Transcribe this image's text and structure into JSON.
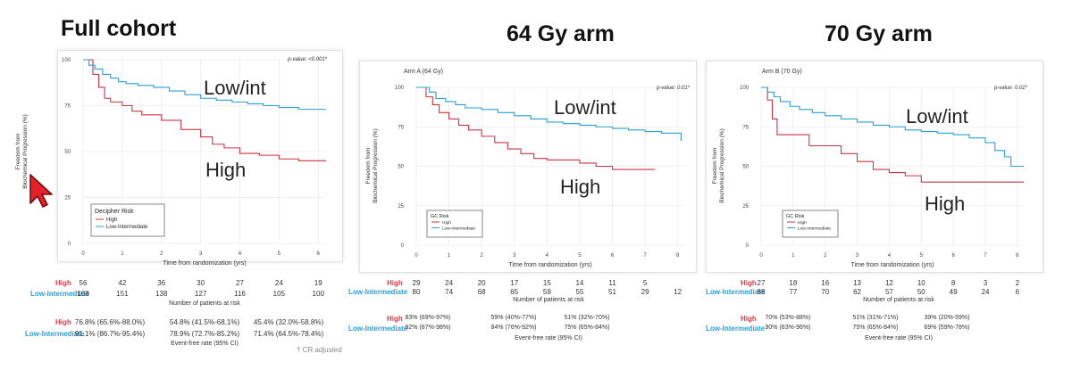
{
  "titles": {
    "full": "Full cohort",
    "arm64": "64 Gy arm",
    "arm70": "70 Gy arm"
  },
  "colors": {
    "high": "#cc3344",
    "low": "#2a9fd6",
    "high_label": "#d63a4a",
    "low_label": "#2a9fd6"
  },
  "cursor_icon": "mouse-pointer-icon",
  "footnote": "† CR adjusted",
  "chart_data": [
    {
      "type": "line",
      "subtitle": "",
      "pvalue": "p-value: <0.001*",
      "xlabel": "Time from randomization (yrs)",
      "ylabel": "Freedom from Biochemical Progression (%)",
      "xlim": [
        0,
        6.2
      ],
      "ylim": [
        0,
        100
      ],
      "xticks": [
        0,
        1,
        2,
        3,
        4,
        5,
        6
      ],
      "yticks": [
        0,
        25,
        50,
        75,
        100
      ],
      "legend": {
        "title": "Decipher Risk",
        "entries": [
          "High",
          "Low-Intermediate"
        ],
        "position": "bottom-left"
      },
      "annotations": {
        "low": "Low/int",
        "high": "High"
      },
      "series": [
        {
          "name": "High",
          "color": "high",
          "x": [
            0,
            0.25,
            0.4,
            0.55,
            0.7,
            1.0,
            1.25,
            1.5,
            2.0,
            2.5,
            3.0,
            3.3,
            3.6,
            4.0,
            4.5,
            5.0,
            5.5,
            6.2
          ],
          "y": [
            100,
            92,
            85,
            79,
            77,
            75,
            72,
            70,
            67,
            62,
            58,
            54,
            52,
            49,
            48,
            46,
            45,
            45
          ]
        },
        {
          "name": "Low-Intermediate",
          "color": "low",
          "x": [
            0,
            0.15,
            0.3,
            0.5,
            0.7,
            0.9,
            1.1,
            1.4,
            1.8,
            2.2,
            2.6,
            3.0,
            3.4,
            3.8,
            4.2,
            4.6,
            5.0,
            5.5,
            6.2
          ],
          "y": [
            100,
            97,
            95,
            92,
            90,
            88,
            87,
            86,
            85,
            83,
            81,
            79,
            78,
            77,
            76,
            75,
            74,
            73,
            73
          ]
        }
      ],
      "risk_table": {
        "caption": "Number of patients at risk",
        "rows": [
          {
            "label": "High",
            "color": "high_label",
            "values": [
              "56",
              "42",
              "36",
              "30",
              "27",
              "24",
              "19"
            ]
          },
          {
            "label": "Low-Intermediate",
            "color": "low_label",
            "values": [
              "168",
              "151",
              "138",
              "127",
              "116",
              "105",
              "100"
            ]
          }
        ]
      },
      "rate_table": {
        "caption": "Event-free rate (95% CI)",
        "rows": [
          {
            "label": "High",
            "color": "high_label",
            "values": [
              "76.8% (65.6%-88.0%)",
              "54.8% (41.5%-68.1%)",
              "45.4% (32.0%-58.8%)"
            ]
          },
          {
            "label": "Low-Intermediate",
            "color": "low_label",
            "values": [
              "91.1% (86.7%-95.4%)",
              "78.9% (72.7%-85.2%)",
              "71.4% (64.5%-78.4%)"
            ]
          }
        ]
      }
    },
    {
      "type": "line",
      "subtitle": "Arm A (64 Gy)",
      "pvalue": "p-value: 0.01*",
      "xlabel": "Time from randomization (yrs)",
      "ylabel": "Freedom from Biochemical Progression (%)",
      "xlim": [
        0,
        8.2
      ],
      "ylim": [
        0,
        100
      ],
      "xticks": [
        0,
        1,
        2,
        3,
        4,
        5,
        6,
        7,
        8
      ],
      "yticks": [
        0,
        25,
        50,
        75,
        100
      ],
      "legend": {
        "title": "GC Risk",
        "entries": [
          "High",
          "Low-Intermediate"
        ],
        "position": "bottom-left"
      },
      "annotations": {
        "low": "Low/int",
        "high": "High"
      },
      "series": [
        {
          "name": "High",
          "color": "high",
          "x": [
            0,
            0.3,
            0.5,
            0.7,
            1.0,
            1.3,
            1.6,
            2.0,
            2.4,
            2.8,
            3.2,
            3.6,
            4.0,
            4.5,
            5.0,
            5.5,
            6.0,
            6.5,
            7.3
          ],
          "y": [
            100,
            94,
            89,
            84,
            80,
            76,
            73,
            69,
            65,
            61,
            58,
            55,
            54,
            54,
            52,
            50,
            48,
            48,
            48
          ]
        },
        {
          "name": "Low-Intermediate",
          "color": "low",
          "x": [
            0,
            0.4,
            0.6,
            0.9,
            1.2,
            1.5,
            2.0,
            2.5,
            3.0,
            3.5,
            4.0,
            4.5,
            5.0,
            5.5,
            6.0,
            6.5,
            7.0,
            7.5,
            7.9,
            8.1
          ],
          "y": [
            100,
            97,
            93,
            91,
            89,
            87,
            86,
            84,
            82,
            80,
            78,
            77,
            76,
            75,
            74,
            73,
            72,
            71,
            71,
            66
          ]
        }
      ],
      "risk_table": {
        "caption": "Number of patients at risk",
        "rows": [
          {
            "label": "High",
            "color": "high_label",
            "values": [
              "29",
              "24",
              "20",
              "17",
              "15",
              "14",
              "11",
              "5",
              ""
            ]
          },
          {
            "label": "Low-Intermediate",
            "color": "low_label",
            "values": [
              "80",
              "74",
              "68",
              "65",
              "59",
              "55",
              "51",
              "29",
              "12"
            ]
          }
        ]
      },
      "rate_table": {
        "caption": "Event-free rate (95% CI)",
        "rows": [
          {
            "label": "High",
            "color": "high_label",
            "values": [
              "83% (69%-97%)",
              "59% (40%-77%)",
              "51% (32%-70%)"
            ]
          },
          {
            "label": "Low-Intermediate",
            "color": "low_label",
            "values": [
              "92% (87%-98%)",
              "84% (76%-92%)",
              "75% (65%-84%)"
            ]
          }
        ]
      }
    },
    {
      "type": "line",
      "subtitle": "Arm B (70 Gy)",
      "pvalue": "p-value: 0.02*",
      "xlabel": "Time from randomization (yrs)",
      "ylabel": "Freedom from Biochemical Progression (%)",
      "xlim": [
        0,
        8.2
      ],
      "ylim": [
        0,
        100
      ],
      "xticks": [
        0,
        1,
        2,
        3,
        4,
        5,
        6,
        7,
        8
      ],
      "yticks": [
        0,
        25,
        50,
        75,
        100
      ],
      "legend": {
        "title": "GC Risk",
        "entries": [
          "High",
          "Low-Intermediate"
        ],
        "position": "bottom-left"
      },
      "annotations": {
        "low": "Low/int",
        "high": "High"
      },
      "series": [
        {
          "name": "High",
          "color": "high",
          "x": [
            0,
            0.2,
            0.35,
            0.5,
            0.8,
            1.0,
            1.5,
            2.0,
            2.5,
            3.0,
            3.5,
            4.0,
            4.5,
            5.0,
            6.0,
            7.0,
            8.2
          ],
          "y": [
            100,
            92,
            80,
            70,
            70,
            70,
            63,
            63,
            58,
            53,
            48,
            46,
            44,
            40,
            40,
            40,
            40
          ]
        },
        {
          "name": "Low-Intermediate",
          "color": "low",
          "x": [
            0,
            0.2,
            0.4,
            0.6,
            0.9,
            1.2,
            1.6,
            2.0,
            2.5,
            3.0,
            3.5,
            4.0,
            4.5,
            5.0,
            5.5,
            6.0,
            6.5,
            7.0,
            7.3,
            7.6,
            7.8,
            8.2
          ],
          "y": [
            100,
            97,
            94,
            91,
            88,
            86,
            84,
            82,
            80,
            78,
            76,
            75,
            73,
            72,
            71,
            70,
            68,
            65,
            60,
            56,
            50,
            50
          ]
        }
      ],
      "risk_table": {
        "caption": "Number of patients at risk",
        "rows": [
          {
            "label": "High",
            "color": "high_label",
            "values": [
              "27",
              "18",
              "16",
              "13",
              "12",
              "10",
              "8",
              "3",
              "2"
            ]
          },
          {
            "label": "Low-Intermediate",
            "color": "low_label",
            "values": [
              "88",
              "77",
              "70",
              "62",
              "57",
              "50",
              "49",
              "24",
              "6"
            ]
          }
        ]
      },
      "rate_table": {
        "caption": "Event-free rate (95% CI)",
        "rows": [
          {
            "label": "High",
            "color": "high_label",
            "values": [
              "70% (53%-88%)",
              "51% (31%-71%)",
              "39% (20%-59%)"
            ]
          },
          {
            "label": "Low-Intermediate",
            "color": "low_label",
            "values": [
              "90% (83%-96%)",
              "75% (65%-84%)",
              "69% (59%-78%)"
            ]
          }
        ]
      }
    }
  ]
}
